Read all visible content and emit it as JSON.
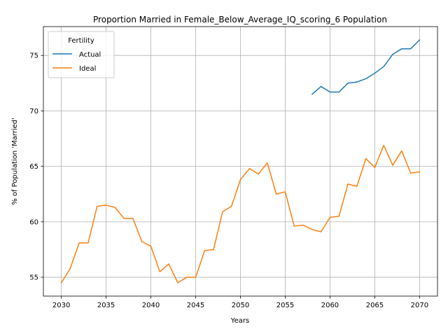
{
  "chart_data": {
    "type": "line",
    "title": "Proportion Married in Female_Below_Average_IQ_scoring_6 Population",
    "xlabel": "Years",
    "ylabel": "% of Population 'Married'",
    "xlim": [
      2028,
      2072
    ],
    "ylim": [
      53.3,
      77.6
    ],
    "xticks": [
      2030,
      2035,
      2040,
      2045,
      2050,
      2055,
      2060,
      2065,
      2070
    ],
    "yticks": [
      55,
      60,
      65,
      70,
      75
    ],
    "grid": true,
    "legend": {
      "title": "Fertility",
      "placement": "top-left"
    },
    "series": [
      {
        "name": "Actual",
        "color": "#1f77b4",
        "x": [
          2058,
          2059,
          2060,
          2061,
          2062,
          2063,
          2064,
          2065,
          2066,
          2067,
          2068,
          2069,
          2070
        ],
        "values": [
          71.5,
          72.2,
          71.7,
          71.7,
          72.5,
          72.6,
          72.9,
          73.4,
          74.0,
          75.1,
          75.6,
          75.6,
          76.4
        ]
      },
      {
        "name": "Ideal",
        "color": "#ff7f0e",
        "x": [
          2030,
          2031,
          2032,
          2033,
          2034,
          2035,
          2036,
          2037,
          2038,
          2039,
          2040,
          2041,
          2042,
          2043,
          2044,
          2045,
          2046,
          2047,
          2048,
          2049,
          2050,
          2051,
          2052,
          2053,
          2054,
          2055,
          2056,
          2057,
          2058,
          2059,
          2060,
          2061,
          2062,
          2063,
          2064,
          2065,
          2066,
          2067,
          2068,
          2069,
          2070
        ],
        "values": [
          54.5,
          55.8,
          58.1,
          58.1,
          61.4,
          61.5,
          61.3,
          60.3,
          60.3,
          58.2,
          57.8,
          55.5,
          56.2,
          54.5,
          55.0,
          55.0,
          57.4,
          57.5,
          60.9,
          61.4,
          63.8,
          64.8,
          64.3,
          65.3,
          62.5,
          62.7,
          59.6,
          59.7,
          59.3,
          59.1,
          60.4,
          60.5,
          63.4,
          63.2,
          65.7,
          64.9,
          66.9,
          65.1,
          66.4,
          64.4,
          64.5
        ]
      }
    ]
  }
}
